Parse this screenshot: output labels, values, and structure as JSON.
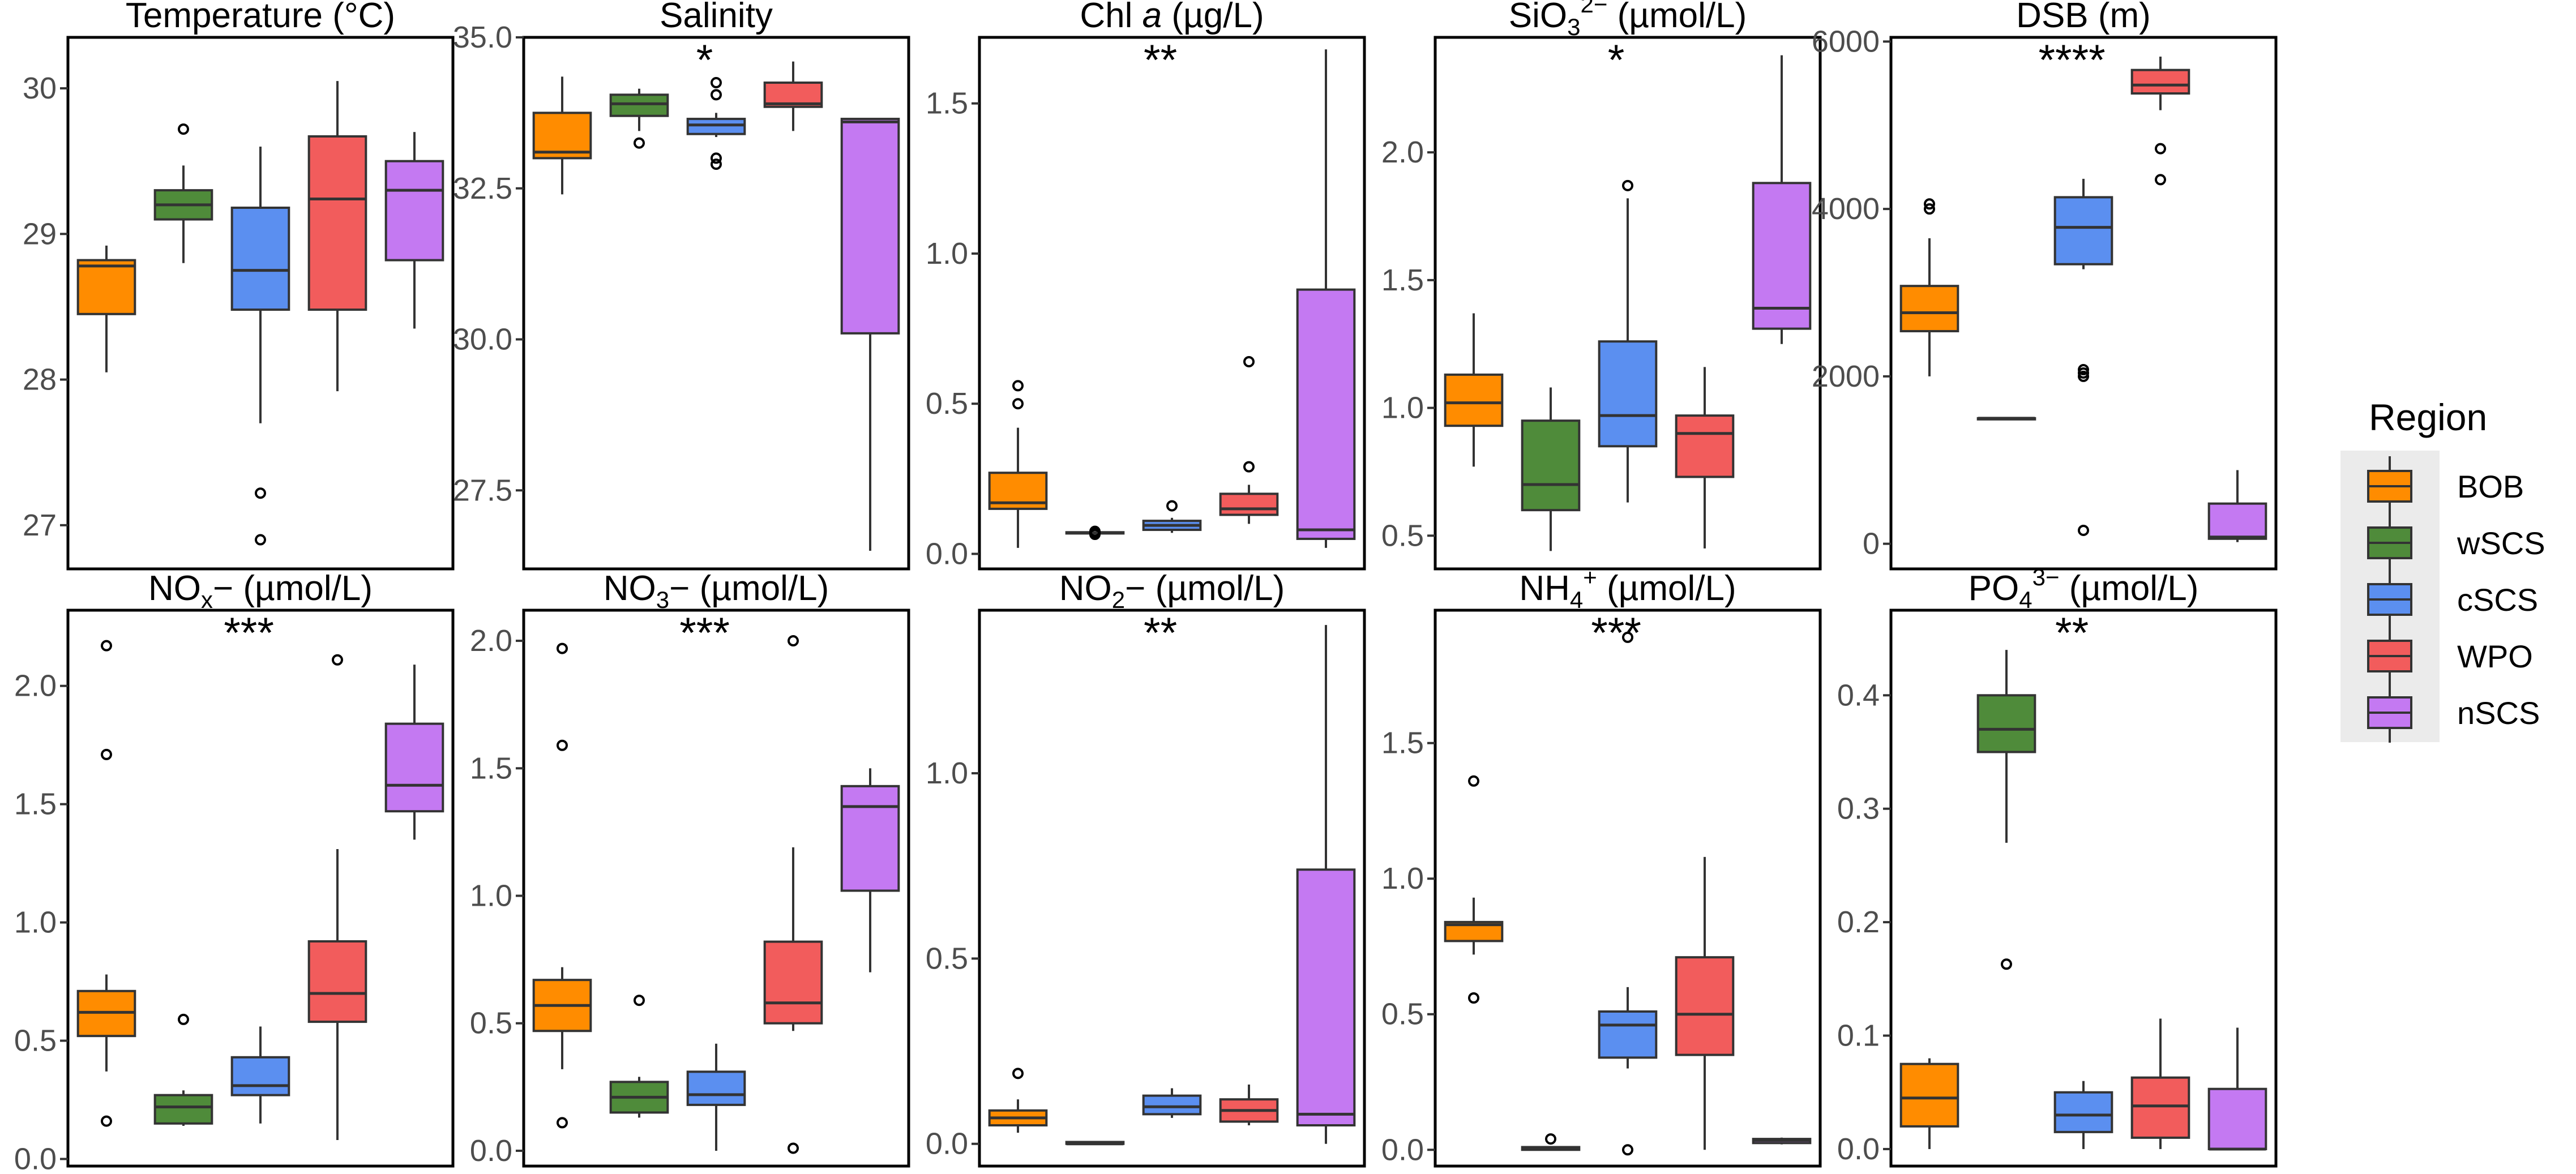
{
  "figure": {
    "legend": {
      "title": "Region",
      "entries": [
        {
          "label": "BOB",
          "color": "#ff8c00"
        },
        {
          "label": "wSCS",
          "color": "#4f8b3a"
        },
        {
          "label": "cSCS",
          "color": "#5b8ff0"
        },
        {
          "label": "WPO",
          "color": "#f25c5c"
        },
        {
          "label": "nSCS",
          "color": "#c479f2"
        }
      ]
    }
  },
  "chart_data": [
    {
      "type": "box",
      "title": "Temperature (°C)",
      "significance": "",
      "ylim": [
        26.7,
        30.35
      ],
      "yticks": [
        27,
        28,
        29,
        30
      ],
      "ytick_labels": [
        "27",
        "28",
        "29",
        "30"
      ],
      "boxes": [
        {
          "region": "BOB",
          "min": 28.05,
          "q1": 28.45,
          "median": 28.78,
          "q3": 28.82,
          "max": 28.92,
          "outliers": []
        },
        {
          "region": "wSCS",
          "min": 28.8,
          "q1": 29.1,
          "median": 29.2,
          "q3": 29.3,
          "max": 29.47,
          "outliers": [
            29.72
          ]
        },
        {
          "region": "cSCS",
          "min": 27.7,
          "q1": 28.48,
          "median": 28.75,
          "q3": 29.18,
          "max": 29.6,
          "outliers": [
            27.22,
            26.9
          ]
        },
        {
          "region": "WPO",
          "min": 27.92,
          "q1": 28.48,
          "median": 29.24,
          "q3": 29.67,
          "max": 30.05,
          "outliers": []
        },
        {
          "region": "nSCS",
          "min": 28.35,
          "q1": 28.82,
          "median": 29.3,
          "q3": 29.5,
          "max": 29.7,
          "outliers": []
        }
      ]
    },
    {
      "type": "box",
      "title": "Salinity",
      "significance": "*",
      "ylim": [
        26.2,
        35.0
      ],
      "yticks": [
        27.5,
        30.0,
        32.5,
        35.0
      ],
      "ytick_labels": [
        "27.5",
        "30.0",
        "32.5",
        "35.0"
      ],
      "boxes": [
        {
          "region": "BOB",
          "min": 32.4,
          "q1": 33.0,
          "median": 33.1,
          "q3": 33.75,
          "max": 34.35,
          "outliers": []
        },
        {
          "region": "wSCS",
          "min": 33.45,
          "q1": 33.7,
          "median": 33.9,
          "q3": 34.05,
          "max": 34.15,
          "outliers": [
            33.25
          ]
        },
        {
          "region": "cSCS",
          "min": 33.35,
          "q1": 33.4,
          "median": 33.55,
          "q3": 33.65,
          "max": 33.75,
          "outliers": [
            34.25,
            34.05,
            33.0,
            32.9
          ]
        },
        {
          "region": "WPO",
          "min": 33.45,
          "q1": 33.85,
          "median": 33.9,
          "q3": 34.25,
          "max": 34.6,
          "outliers": []
        },
        {
          "region": "nSCS",
          "min": 26.5,
          "q1": 30.1,
          "median": 33.6,
          "q3": 33.65,
          "max": 33.65,
          "outliers": []
        }
      ]
    },
    {
      "type": "box",
      "title": "Chl a (µg/L)",
      "significance": "**",
      "ylim": [
        -0.05,
        1.72
      ],
      "yticks": [
        0.0,
        0.5,
        1.0,
        1.5
      ],
      "ytick_labels": [
        "0.0",
        "0.5",
        "1.0",
        "1.5"
      ],
      "boxes": [
        {
          "region": "BOB",
          "min": 0.02,
          "q1": 0.15,
          "median": 0.17,
          "q3": 0.27,
          "max": 0.42,
          "outliers": [
            0.56,
            0.5
          ]
        },
        {
          "region": "wSCS",
          "min": 0.065,
          "q1": 0.068,
          "median": 0.07,
          "q3": 0.072,
          "max": 0.074,
          "outliers": [
            0.065,
            0.07,
            0.075
          ]
        },
        {
          "region": "cSCS",
          "min": 0.07,
          "q1": 0.08,
          "median": 0.095,
          "q3": 0.11,
          "max": 0.12,
          "outliers": [
            0.16
          ]
        },
        {
          "region": "WPO",
          "min": 0.1,
          "q1": 0.13,
          "median": 0.15,
          "q3": 0.2,
          "max": 0.23,
          "outliers": [
            0.64,
            0.29
          ]
        },
        {
          "region": "nSCS",
          "min": 0.02,
          "q1": 0.05,
          "median": 0.08,
          "q3": 0.88,
          "max": 1.68,
          "outliers": []
        }
      ]
    },
    {
      "type": "box",
      "title": "SiO3 2− (µmol/L)",
      "significance": "*",
      "ylim": [
        0.37,
        2.45
      ],
      "yticks": [
        0.5,
        1.0,
        1.5,
        2.0
      ],
      "ytick_labels": [
        "0.5",
        "1.0",
        "1.5",
        "2.0"
      ],
      "boxes": [
        {
          "region": "BOB",
          "min": 0.77,
          "q1": 0.93,
          "median": 1.02,
          "q3": 1.13,
          "max": 1.37,
          "outliers": []
        },
        {
          "region": "wSCS",
          "min": 0.44,
          "q1": 0.6,
          "median": 0.7,
          "q3": 0.95,
          "max": 1.08,
          "outliers": []
        },
        {
          "region": "cSCS",
          "min": 0.63,
          "q1": 0.85,
          "median": 0.97,
          "q3": 1.26,
          "max": 1.82,
          "outliers": [
            1.87
          ]
        },
        {
          "region": "WPO",
          "min": 0.45,
          "q1": 0.73,
          "median": 0.9,
          "q3": 0.97,
          "max": 1.16,
          "outliers": []
        },
        {
          "region": "nSCS",
          "min": 1.25,
          "q1": 1.31,
          "median": 1.39,
          "q3": 1.88,
          "max": 2.38,
          "outliers": []
        }
      ]
    },
    {
      "type": "box",
      "title": "DSB (m)",
      "significance": "****",
      "ylim": [
        -300,
        6050
      ],
      "yticks": [
        0,
        2000,
        4000,
        6000
      ],
      "ytick_labels": [
        "0",
        "2000",
        "4000",
        "6000"
      ],
      "boxes": [
        {
          "region": "BOB",
          "min": 2000,
          "q1": 2540,
          "median": 2760,
          "q3": 3080,
          "max": 3650,
          "outliers": [
            4060,
            4000
          ]
        },
        {
          "region": "wSCS",
          "min": 1500,
          "q1": 1500,
          "median": 1500,
          "q3": 1500,
          "max": 1500,
          "outliers": []
        },
        {
          "region": "cSCS",
          "min": 3280,
          "q1": 3340,
          "median": 3780,
          "q3": 4140,
          "max": 4360,
          "outliers": [
            2080,
            2040,
            2000,
            160
          ]
        },
        {
          "region": "WPO",
          "min": 5180,
          "q1": 5380,
          "median": 5480,
          "q3": 5660,
          "max": 5820,
          "outliers": [
            4720,
            4350
          ]
        },
        {
          "region": "nSCS",
          "min": 20,
          "q1": 60,
          "median": 80,
          "q3": 480,
          "max": 880,
          "outliers": []
        }
      ]
    },
    {
      "type": "box",
      "title": "NOx− (µmol/L)",
      "significance": "***",
      "ylim": [
        -0.03,
        2.32
      ],
      "yticks": [
        0.0,
        0.5,
        1.0,
        1.5,
        2.0
      ],
      "ytick_labels": [
        "0.0",
        "0.5",
        "1.0",
        "1.5",
        "2.0"
      ],
      "boxes": [
        {
          "region": "BOB",
          "min": 0.37,
          "q1": 0.52,
          "median": 0.62,
          "q3": 0.71,
          "max": 0.78,
          "outliers": [
            2.17,
            1.71,
            0.16
          ]
        },
        {
          "region": "wSCS",
          "min": 0.14,
          "q1": 0.15,
          "median": 0.22,
          "q3": 0.27,
          "max": 0.29,
          "outliers": [
            0.59
          ]
        },
        {
          "region": "cSCS",
          "min": 0.15,
          "q1": 0.27,
          "median": 0.31,
          "q3": 0.43,
          "max": 0.56,
          "outliers": []
        },
        {
          "region": "WPO",
          "min": 0.08,
          "q1": 0.58,
          "median": 0.7,
          "q3": 0.92,
          "max": 1.31,
          "outliers": [
            2.11
          ]
        },
        {
          "region": "nSCS",
          "min": 1.35,
          "q1": 1.47,
          "median": 1.58,
          "q3": 1.84,
          "max": 2.09,
          "outliers": []
        }
      ]
    },
    {
      "type": "box",
      "title": "NO3− (µmol/L)",
      "significance": "***",
      "ylim": [
        -0.06,
        2.12
      ],
      "yticks": [
        0.0,
        0.5,
        1.0,
        1.5,
        2.0
      ],
      "ytick_labels": [
        "0.0",
        "0.5",
        "1.0",
        "1.5",
        "2.0"
      ],
      "boxes": [
        {
          "region": "BOB",
          "min": 0.32,
          "q1": 0.47,
          "median": 0.57,
          "q3": 0.67,
          "max": 0.72,
          "outliers": [
            1.97,
            1.59,
            0.11
          ]
        },
        {
          "region": "wSCS",
          "min": 0.13,
          "q1": 0.15,
          "median": 0.21,
          "q3": 0.27,
          "max": 0.29,
          "outliers": [
            0.59
          ]
        },
        {
          "region": "cSCS",
          "min": 0.0,
          "q1": 0.18,
          "median": 0.22,
          "q3": 0.31,
          "max": 0.42,
          "outliers": []
        },
        {
          "region": "WPO",
          "min": 0.47,
          "q1": 0.5,
          "median": 0.58,
          "q3": 0.82,
          "max": 1.19,
          "outliers": [
            2.0,
            0.01
          ]
        },
        {
          "region": "nSCS",
          "min": 0.7,
          "q1": 1.02,
          "median": 1.35,
          "q3": 1.43,
          "max": 1.5,
          "outliers": []
        }
      ]
    },
    {
      "type": "box",
      "title": "NO2− (µmol/L)",
      "significance": "**",
      "ylim": [
        -0.06,
        1.44
      ],
      "yticks": [
        0.0,
        0.5,
        1.0
      ],
      "ytick_labels": [
        "0.0",
        "0.5",
        "1.0"
      ],
      "boxes": [
        {
          "region": "BOB",
          "min": 0.03,
          "q1": 0.05,
          "median": 0.07,
          "q3": 0.09,
          "max": 0.12,
          "outliers": [
            0.19
          ]
        },
        {
          "region": "wSCS",
          "min": 0.0,
          "q1": 0.0,
          "median": 0.0,
          "q3": 0.005,
          "max": 0.005,
          "outliers": []
        },
        {
          "region": "cSCS",
          "min": 0.07,
          "q1": 0.08,
          "median": 0.1,
          "q3": 0.13,
          "max": 0.15,
          "outliers": []
        },
        {
          "region": "WPO",
          "min": 0.05,
          "q1": 0.06,
          "median": 0.09,
          "q3": 0.12,
          "max": 0.16,
          "outliers": []
        },
        {
          "region": "nSCS",
          "min": 0.0,
          "q1": 0.05,
          "median": 0.08,
          "q3": 0.74,
          "max": 1.4,
          "outliers": []
        }
      ]
    },
    {
      "type": "box",
      "title": "NH4+ (µmol/L)",
      "significance": "***",
      "ylim": [
        -0.06,
        1.99
      ],
      "yticks": [
        0.0,
        0.5,
        1.0,
        1.5
      ],
      "ytick_labels": [
        "0.0",
        "0.5",
        "1.0",
        "1.5"
      ],
      "boxes": [
        {
          "region": "BOB",
          "min": 0.72,
          "q1": 0.77,
          "median": 0.83,
          "q3": 0.84,
          "max": 0.93,
          "outliers": [
            1.36,
            0.56
          ]
        },
        {
          "region": "wSCS",
          "min": 0.0,
          "q1": 0.0,
          "median": 0.005,
          "q3": 0.01,
          "max": 0.01,
          "outliers": [
            0.04
          ]
        },
        {
          "region": "cSCS",
          "min": 0.3,
          "q1": 0.34,
          "median": 0.46,
          "q3": 0.51,
          "max": 0.6,
          "outliers": [
            1.89,
            0.0
          ]
        },
        {
          "region": "WPO",
          "min": 0.0,
          "q1": 0.35,
          "median": 0.5,
          "q3": 0.71,
          "max": 1.08,
          "outliers": []
        },
        {
          "region": "nSCS",
          "min": 0.02,
          "q1": 0.025,
          "median": 0.035,
          "q3": 0.04,
          "max": 0.045,
          "outliers": []
        }
      ]
    },
    {
      "type": "box",
      "title": "PO4 3− (µmol/L)",
      "significance": "**",
      "ylim": [
        -0.015,
        0.475
      ],
      "yticks": [
        0.0,
        0.1,
        0.2,
        0.3,
        0.4
      ],
      "ytick_labels": [
        "0.0",
        "0.1",
        "0.2",
        "0.3",
        "0.4"
      ],
      "boxes": [
        {
          "region": "BOB",
          "min": 0.0,
          "q1": 0.02,
          "median": 0.045,
          "q3": 0.075,
          "max": 0.08,
          "outliers": []
        },
        {
          "region": "wSCS",
          "min": 0.27,
          "q1": 0.35,
          "median": 0.37,
          "q3": 0.4,
          "max": 0.44,
          "outliers": [
            0.163
          ]
        },
        {
          "region": "cSCS",
          "min": 0.0,
          "q1": 0.015,
          "median": 0.03,
          "q3": 0.05,
          "max": 0.06,
          "outliers": []
        },
        {
          "region": "WPO",
          "min": 0.0,
          "q1": 0.01,
          "median": 0.038,
          "q3": 0.063,
          "max": 0.115,
          "outliers": []
        },
        {
          "region": "nSCS",
          "min": 0.0,
          "q1": 0.0,
          "median": 0.0,
          "q3": 0.053,
          "max": 0.107,
          "outliers": []
        }
      ]
    }
  ]
}
